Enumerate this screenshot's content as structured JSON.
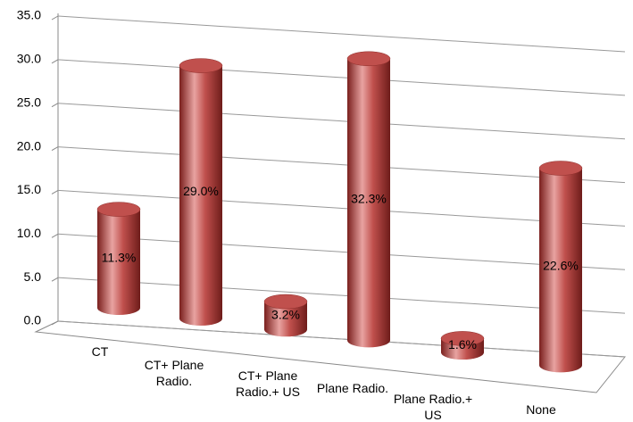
{
  "chart_data": {
    "type": "bar3d",
    "categories": [
      "CT",
      "CT+ Plane Radio.",
      "CT+ Plane Radio.+ US",
      "Plane Radio.",
      "Plane Radio.+ US",
      "None"
    ],
    "values": [
      11.3,
      29.0,
      3.2,
      32.3,
      1.6,
      22.6
    ],
    "value_labels": [
      "11.3%",
      "29.0%",
      "3.2%",
      "32.3%",
      "1.6%",
      "22.6%"
    ],
    "color": "#c0504d",
    "ylim": [
      0,
      35
    ],
    "yticks": [
      {
        "value": 0,
        "label": "0.0"
      },
      {
        "value": 5,
        "label": "5.0"
      },
      {
        "value": 10,
        "label": "10.0"
      },
      {
        "value": 15,
        "label": "15.0"
      },
      {
        "value": 20,
        "label": "20.0"
      },
      {
        "value": 25,
        "label": "25.0"
      },
      {
        "value": 30,
        "label": "30.0"
      },
      {
        "value": 35,
        "label": "35.0"
      }
    ],
    "grid": true
  }
}
